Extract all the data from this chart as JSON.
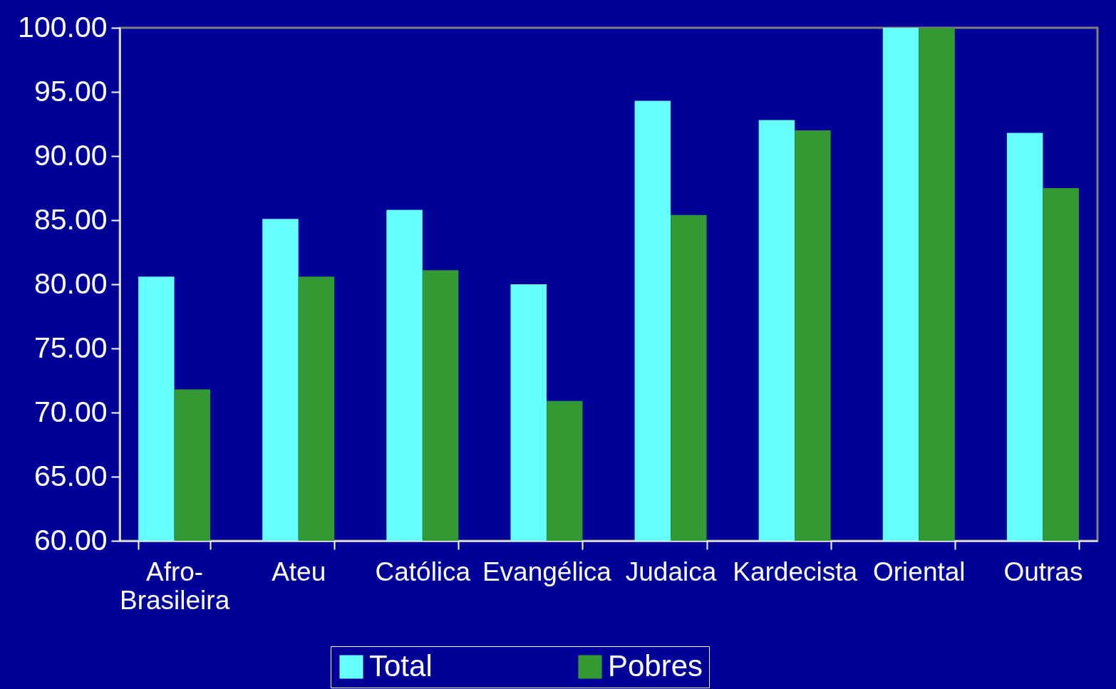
{
  "chart_data": {
    "type": "bar",
    "categories": [
      "Afro-Brasileira",
      "Ateu",
      "Católica",
      "Evangélica",
      "Judaica",
      "Kardecista",
      "Oriental",
      "Outras"
    ],
    "series": [
      {
        "name": "Total",
        "color": "#66ffff",
        "values": [
          80.6,
          85.1,
          85.8,
          80.0,
          94.3,
          92.8,
          100,
          91.8
        ]
      },
      {
        "name": "Pobres",
        "color": "#339933",
        "values": [
          71.8,
          80.6,
          81.1,
          70.9,
          85.4,
          92.0,
          100,
          87.5
        ]
      }
    ],
    "ylim": [
      60,
      100
    ],
    "yticks": [
      {
        "value": 60,
        "label": "60.00"
      },
      {
        "value": 65,
        "label": "65.00"
      },
      {
        "value": 70,
        "label": "70.00"
      },
      {
        "value": 75,
        "label": "75.00"
      },
      {
        "value": 80,
        "label": "80.00"
      },
      {
        "value": 85,
        "label": "85.00"
      },
      {
        "value": 90,
        "label": "90.00"
      },
      {
        "value": 95,
        "label": "95.00"
      },
      {
        "value": 100,
        "label": "100.00"
      }
    ],
    "legend": "bottom"
  }
}
